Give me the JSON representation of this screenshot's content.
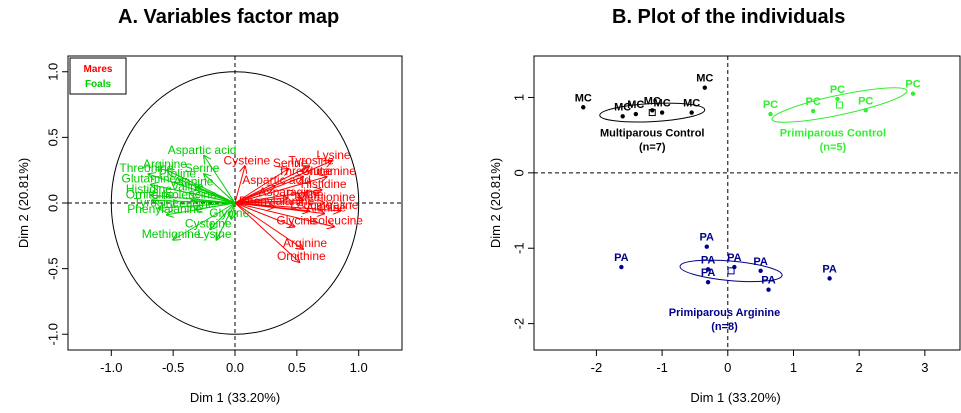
{
  "chart_data": [
    {
      "type": "scatter",
      "title": "A. Variables factor map",
      "xlabel": "Dim 1 (33.20%)",
      "ylabel": "Dim 2 (20.81%)",
      "xlim": [
        -1.35,
        1.35
      ],
      "ylim": [
        -1.12,
        1.12
      ],
      "xticks": [
        -1.0,
        -0.5,
        0.0,
        0.5,
        1.0
      ],
      "yticks": [
        -1.0,
        -0.5,
        0.0,
        0.5,
        1.0
      ],
      "xtick_labels": [
        "-1.0",
        "-0.5",
        "0.0",
        "0.5",
        "1.0"
      ],
      "ytick_labels": [
        "-1.0",
        "-0.5",
        "0.0",
        "0.5",
        "1.0"
      ],
      "legend": {
        "position": "top-left",
        "entries": [
          {
            "name": "Mares",
            "color": "#ff0000"
          },
          {
            "name": "Foals",
            "color": "#00cc00"
          }
        ]
      },
      "series": [
        {
          "name": "Mares",
          "color": "#ff0000",
          "points": [
            {
              "label": "Cysteine",
              "x": 0.08,
              "y": 0.28
            },
            {
              "label": "Serine",
              "x": 0.43,
              "y": 0.26
            },
            {
              "label": "Tyrosine",
              "x": 0.6,
              "y": 0.28
            },
            {
              "label": "Lysine",
              "x": 0.78,
              "y": 0.32
            },
            {
              "label": "Glutamine",
              "x": 0.74,
              "y": 0.2
            },
            {
              "label": "Threonine",
              "x": 0.55,
              "y": 0.2
            },
            {
              "label": "Aspartic acid",
              "x": 0.32,
              "y": 0.13
            },
            {
              "label": "Histidine",
              "x": 0.7,
              "y": 0.1
            },
            {
              "label": "Asparagine",
              "x": 0.42,
              "y": 0.04
            },
            {
              "label": "Proline",
              "x": 0.55,
              "y": 0.02
            },
            {
              "label": "Methionine",
              "x": 0.72,
              "y": 0.0
            },
            {
              "label": "Phenylalanine",
              "x": 0.32,
              "y": -0.03
            },
            {
              "label": "Leucine",
              "x": 0.6,
              "y": -0.06
            },
            {
              "label": "Alanine",
              "x": 0.72,
              "y": -0.08
            },
            {
              "label": "Valine",
              "x": 0.85,
              "y": -0.06
            },
            {
              "label": "Isoleucine",
              "x": 0.8,
              "y": -0.18
            },
            {
              "label": "Glycine",
              "x": 0.48,
              "y": -0.18
            },
            {
              "label": "Arginine",
              "x": 0.55,
              "y": -0.35
            },
            {
              "label": "Ornithine",
              "x": 0.52,
              "y": -0.45
            }
          ]
        },
        {
          "name": "Foals",
          "color": "#00cc00",
          "points": [
            {
              "label": "Aspartic acid",
              "x": -0.25,
              "y": 0.36
            },
            {
              "label": "Serine",
              "x": -0.25,
              "y": 0.22
            },
            {
              "label": "Arginine",
              "x": -0.55,
              "y": 0.25
            },
            {
              "label": "Threonine",
              "x": -0.7,
              "y": 0.22
            },
            {
              "label": "Proline",
              "x": -0.45,
              "y": 0.18
            },
            {
              "label": "Glutamine",
              "x": -0.68,
              "y": 0.14
            },
            {
              "label": "Alanine",
              "x": -0.32,
              "y": 0.12
            },
            {
              "label": "Valine",
              "x": -0.37,
              "y": 0.08
            },
            {
              "label": "Histidine",
              "x": -0.68,
              "y": 0.06
            },
            {
              "label": "Isoleucine",
              "x": -0.35,
              "y": 0.02
            },
            {
              "label": "Ornithine",
              "x": -0.67,
              "y": 0.02
            },
            {
              "label": "Tyrosine",
              "x": -0.62,
              "y": -0.04
            },
            {
              "label": "Leucine",
              "x": -0.32,
              "y": -0.05
            },
            {
              "label": "Phenylalanine",
              "x": -0.55,
              "y": -0.09
            },
            {
              "label": "Glycine",
              "x": -0.03,
              "y": -0.12
            },
            {
              "label": "Cysteine",
              "x": -0.2,
              "y": -0.2
            },
            {
              "label": "Lysine",
              "x": -0.15,
              "y": -0.28
            },
            {
              "label": "Methionine",
              "x": -0.5,
              "y": -0.28
            }
          ]
        }
      ],
      "unit_circle": true,
      "grid": false
    },
    {
      "type": "scatter",
      "title": "B. Plot of the individuals",
      "xlabel": "Dim 1 (33.20%)",
      "ylabel": "Dim 2 (20.81%)",
      "xlim": [
        -2.95,
        3.55
      ],
      "ylim": [
        -2.35,
        1.55
      ],
      "xticks": [
        -2,
        -1,
        0,
        1,
        2,
        3
      ],
      "yticks": [
        -2,
        -1,
        0,
        1
      ],
      "xtick_labels": [
        "-2",
        "-1",
        "0",
        "1",
        "2",
        "3"
      ],
      "ytick_labels": [
        "-2",
        "-1",
        "0",
        "1"
      ],
      "grid": false,
      "groups": [
        {
          "name": "Multiparous Control",
          "n_label": "(n=7)",
          "color": "#000000",
          "centroid": [
            -1.15,
            0.8
          ],
          "ellipse": {
            "rx": 0.8,
            "ry": 0.12,
            "angle_deg": 3
          },
          "label_pos": [
            -1.15,
            0.48
          ],
          "points": [
            {
              "label": "MC",
              "x": -2.2,
              "y": 0.87
            },
            {
              "label": "MC",
              "x": -1.6,
              "y": 0.75
            },
            {
              "label": "MC",
              "x": -1.4,
              "y": 0.78
            },
            {
              "label": "MC",
              "x": -1.15,
              "y": 0.83
            },
            {
              "label": "MC",
              "x": -1.0,
              "y": 0.8
            },
            {
              "label": "MC",
              "x": -0.35,
              "y": 1.13
            },
            {
              "label": "MC",
              "x": -0.55,
              "y": 0.8
            }
          ]
        },
        {
          "name": "Primiparous Control",
          "n_label": "(n=5)",
          "color": "#33ee33",
          "centroid": [
            1.7,
            0.9
          ],
          "ellipse": {
            "rx": 1.05,
            "ry": 0.13,
            "angle_deg": 12
          },
          "label_pos": [
            1.6,
            0.48
          ],
          "points": [
            {
              "label": "PC",
              "x": 0.65,
              "y": 0.78
            },
            {
              "label": "PC",
              "x": 1.3,
              "y": 0.82
            },
            {
              "label": "PC",
              "x": 1.67,
              "y": 0.98
            },
            {
              "label": "PC",
              "x": 2.1,
              "y": 0.83
            },
            {
              "label": "PC",
              "x": 2.82,
              "y": 1.05
            }
          ]
        },
        {
          "name": "Primiparous Arginine",
          "n_label": "(n=8)",
          "color": "#00008b",
          "centroid": [
            0.05,
            -1.3
          ],
          "ellipse": {
            "rx": 0.78,
            "ry": 0.13,
            "angle_deg": -5
          },
          "label_pos": [
            -0.05,
            -1.9
          ],
          "points": [
            {
              "label": "PA",
              "x": -1.62,
              "y": -1.25
            },
            {
              "label": "PA",
              "x": -0.32,
              "y": -0.98
            },
            {
              "label": "PA",
              "x": -0.3,
              "y": -1.28
            },
            {
              "label": "PA",
              "x": -0.3,
              "y": -1.45
            },
            {
              "label": "PA",
              "x": 0.1,
              "y": -1.25
            },
            {
              "label": "PA",
              "x": 0.5,
              "y": -1.3
            },
            {
              "label": "PA",
              "x": 0.62,
              "y": -1.55
            },
            {
              "label": "PA",
              "x": 1.55,
              "y": -1.4
            }
          ]
        }
      ]
    }
  ]
}
